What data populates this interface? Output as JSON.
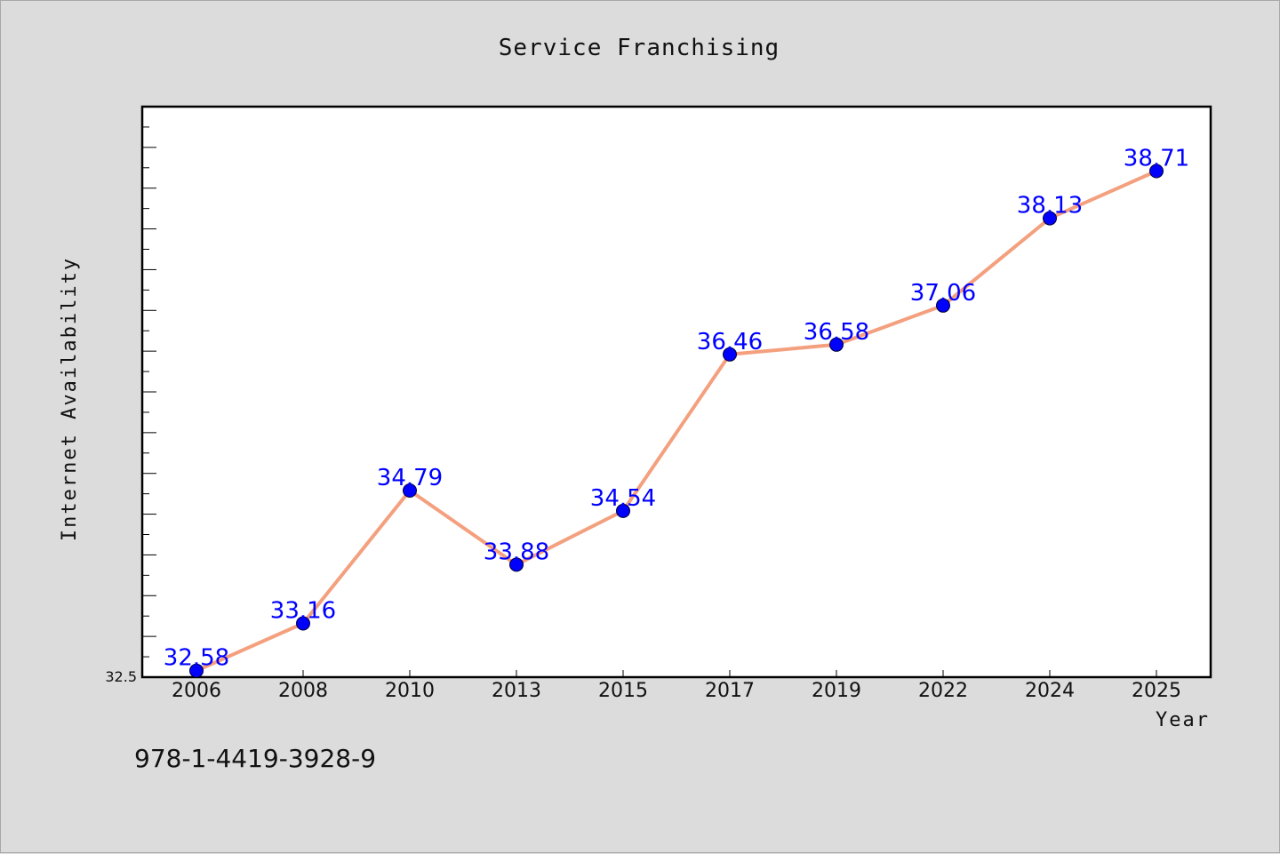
{
  "chart_data": {
    "type": "line",
    "title": "Service Franchising",
    "xlabel": "Year",
    "ylabel": "Internet Availability",
    "categories": [
      "2006",
      "2008",
      "2010",
      "2013",
      "2015",
      "2017",
      "2019",
      "2022",
      "2024",
      "2025"
    ],
    "series": [
      {
        "values": [
          32.58,
          33.16,
          34.79,
          33.88,
          34.54,
          36.46,
          36.58,
          37.06,
          38.13,
          38.71
        ],
        "line_color": "#f4a07e",
        "marker_color": "#0000ff"
      }
    ],
    "data_labels": [
      "32.58",
      "33.16",
      "34.79",
      "33.88",
      "34.54",
      "36.46",
      "36.58",
      "37.06",
      "38.13",
      "38.71"
    ],
    "ylim": [
      32.5,
      39.5
    ],
    "y_min_label": "32.5",
    "grid": false,
    "legend": "none"
  },
  "footer": {
    "isbn": "978-1-4419-3928-9"
  }
}
